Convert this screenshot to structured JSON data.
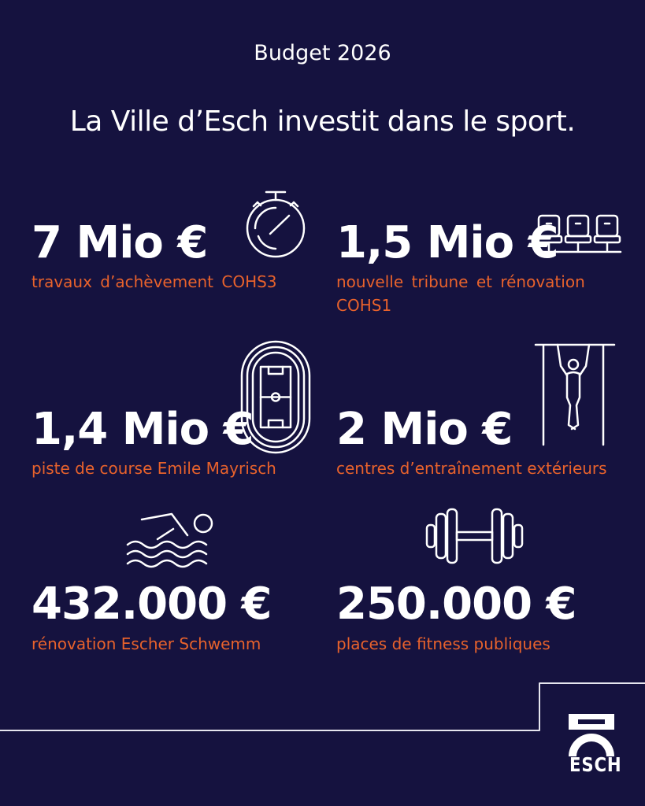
{
  "header": {
    "budget": "Budget 2026",
    "headline": "La Ville d’Esch investit dans le sport."
  },
  "items": [
    {
      "amount": "7 Mio €",
      "description": "travaux d’achèvement COHS3",
      "icon": "stopwatch-icon"
    },
    {
      "amount": "1,5 Mio €",
      "description": "nouvelle tribune et rénovation COHS1",
      "icon": "stadium-seats-icon"
    },
    {
      "amount": "1,4 Mio €",
      "description": "piste de course Emile Mayrisch",
      "icon": "running-track-icon"
    },
    {
      "amount": "2 Mio €",
      "description": "centres d’entraînement extérieurs",
      "icon": "pull-up-bar-icon"
    },
    {
      "amount": "432.000 €",
      "description": "rénovation Escher Schwemm",
      "icon": "swimmer-icon"
    },
    {
      "amount": "250.000 €",
      "description": "places de fitness publiques",
      "icon": "dumbbell-icon"
    }
  ],
  "logo": {
    "text": "esch"
  },
  "colors": {
    "background": "#15123f",
    "accent": "#e8622c",
    "text": "#ffffff"
  }
}
